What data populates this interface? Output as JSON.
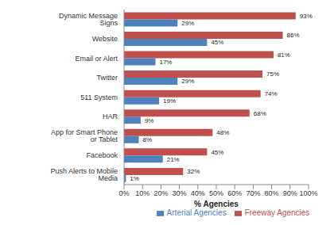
{
  "chart_data": {
    "type": "bar",
    "orientation": "horizontal",
    "xlabel": "% Agencies",
    "categories": [
      "Dynamic Message Signs",
      "Website",
      "Email or Alert",
      "Twitter",
      "511 System",
      "HAR",
      "App for Smart Phone or Tablet",
      "Facebook",
      "Push Alerts to Mobile Media"
    ],
    "series": [
      {
        "name": "Freeway Agencies",
        "color": "#C0504D",
        "values": [
          93,
          86,
          81,
          75,
          74,
          68,
          48,
          45,
          32
        ],
        "value_labels": [
          "93%",
          "86%",
          "81%",
          "75%",
          "74%",
          "68%",
          "48%",
          "45%",
          "32%"
        ]
      },
      {
        "name": "Arterial Agencies",
        "color": "#4F81BD",
        "values": [
          29,
          45,
          17,
          29,
          19,
          9,
          8,
          21,
          1
        ],
        "value_labels": [
          "29%",
          "45%",
          "17%",
          "29%",
          "19%",
          "9%",
          "8%",
          "21%",
          "1%"
        ]
      }
    ],
    "xlim": [
      0,
      100
    ],
    "xticks": [
      {
        "value": 0,
        "label": "0%"
      },
      {
        "value": 10,
        "label": "10%"
      },
      {
        "value": 20,
        "label": "20%"
      },
      {
        "value": 30,
        "label": "30%"
      },
      {
        "value": 40,
        "label": "40%"
      },
      {
        "value": 50,
        "label": "50%"
      },
      {
        "value": 60,
        "label": "60%"
      },
      {
        "value": 70,
        "label": "70%"
      },
      {
        "value": 80,
        "label": "80%"
      },
      {
        "value": 90,
        "label": "90%"
      },
      {
        "value": 100,
        "label": "100%"
      }
    ],
    "grid": false,
    "data_labels": true,
    "legend": "bottom"
  }
}
